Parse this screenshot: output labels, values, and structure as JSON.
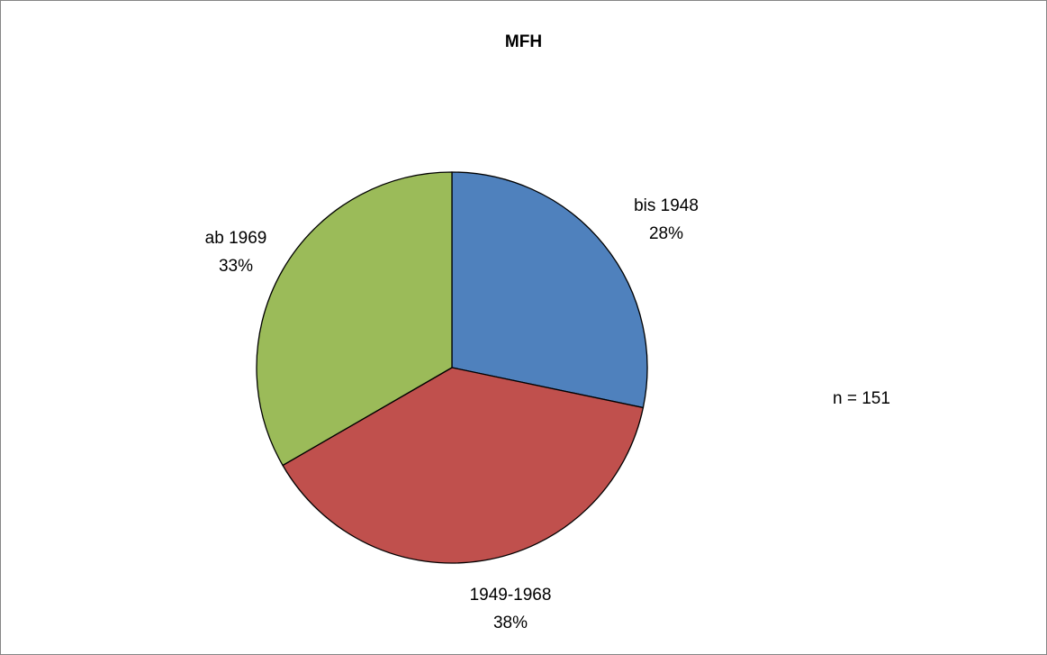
{
  "chart_data": {
    "type": "pie",
    "title": "MFH",
    "slices": [
      {
        "label": "bis 1948",
        "value": 28,
        "value_label": "28%",
        "color": "#4F81BD"
      },
      {
        "label": "1949-1968",
        "value": 38,
        "value_label": "38%",
        "color": "#C0504D"
      },
      {
        "label": "ab 1969",
        "value": 33,
        "value_label": "33%",
        "color": "#9BBB59"
      }
    ],
    "start": "12 o'clock",
    "direction": "clockwise",
    "legend": "none",
    "note": "n = 151"
  }
}
